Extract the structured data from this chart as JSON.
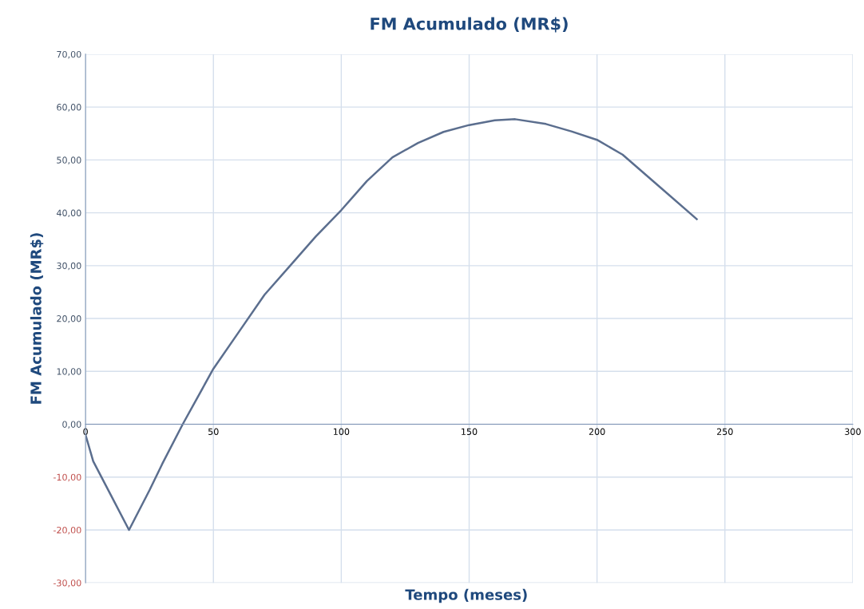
{
  "chart_data": {
    "type": "line",
    "title": "FM Acumulado (MR$)",
    "xlabel": "Tempo (meses)",
    "ylabel": "FM Acumulado (MR$)",
    "series": [
      {
        "color": "#5b6e8e",
        "x": [
          0,
          3,
          10,
          17,
          25,
          30,
          38,
          50,
          60,
          70,
          80,
          90,
          100,
          110,
          120,
          130,
          140,
          150,
          160,
          168,
          180,
          190,
          200,
          210,
          225,
          239
        ],
        "values": [
          -2,
          -7,
          -13.5,
          -20,
          -12.5,
          -7.5,
          0,
          10.5,
          17.5,
          24.5,
          30,
          35.5,
          40.5,
          46,
          50.5,
          53.2,
          55.3,
          56.6,
          57.5,
          57.7,
          56.8,
          55.4,
          53.8,
          51,
          44.7,
          38.8
        ]
      }
    ],
    "xlim": [
      0,
      300
    ],
    "xticks": [
      0,
      50,
      100,
      150,
      200,
      250,
      300
    ],
    "ylim": [
      -30,
      70
    ],
    "yticks": [
      {
        "value": -30,
        "label": "-30,00"
      },
      {
        "value": -20,
        "label": "-20,00"
      },
      {
        "value": -10,
        "label": "-10,00"
      },
      {
        "value": 0,
        "label": "0,00"
      },
      {
        "value": 10,
        "label": "10,00"
      },
      {
        "value": 20,
        "label": "20,00"
      },
      {
        "value": 30,
        "label": "30,00"
      },
      {
        "value": 40,
        "label": "40,00"
      },
      {
        "value": 50,
        "label": "50,00"
      },
      {
        "value": 60,
        "label": "60,00"
      },
      {
        "value": 70,
        "label": "70,00"
      }
    ],
    "grid": true,
    "marker": "none",
    "line_style": "solid",
    "legend": false
  }
}
